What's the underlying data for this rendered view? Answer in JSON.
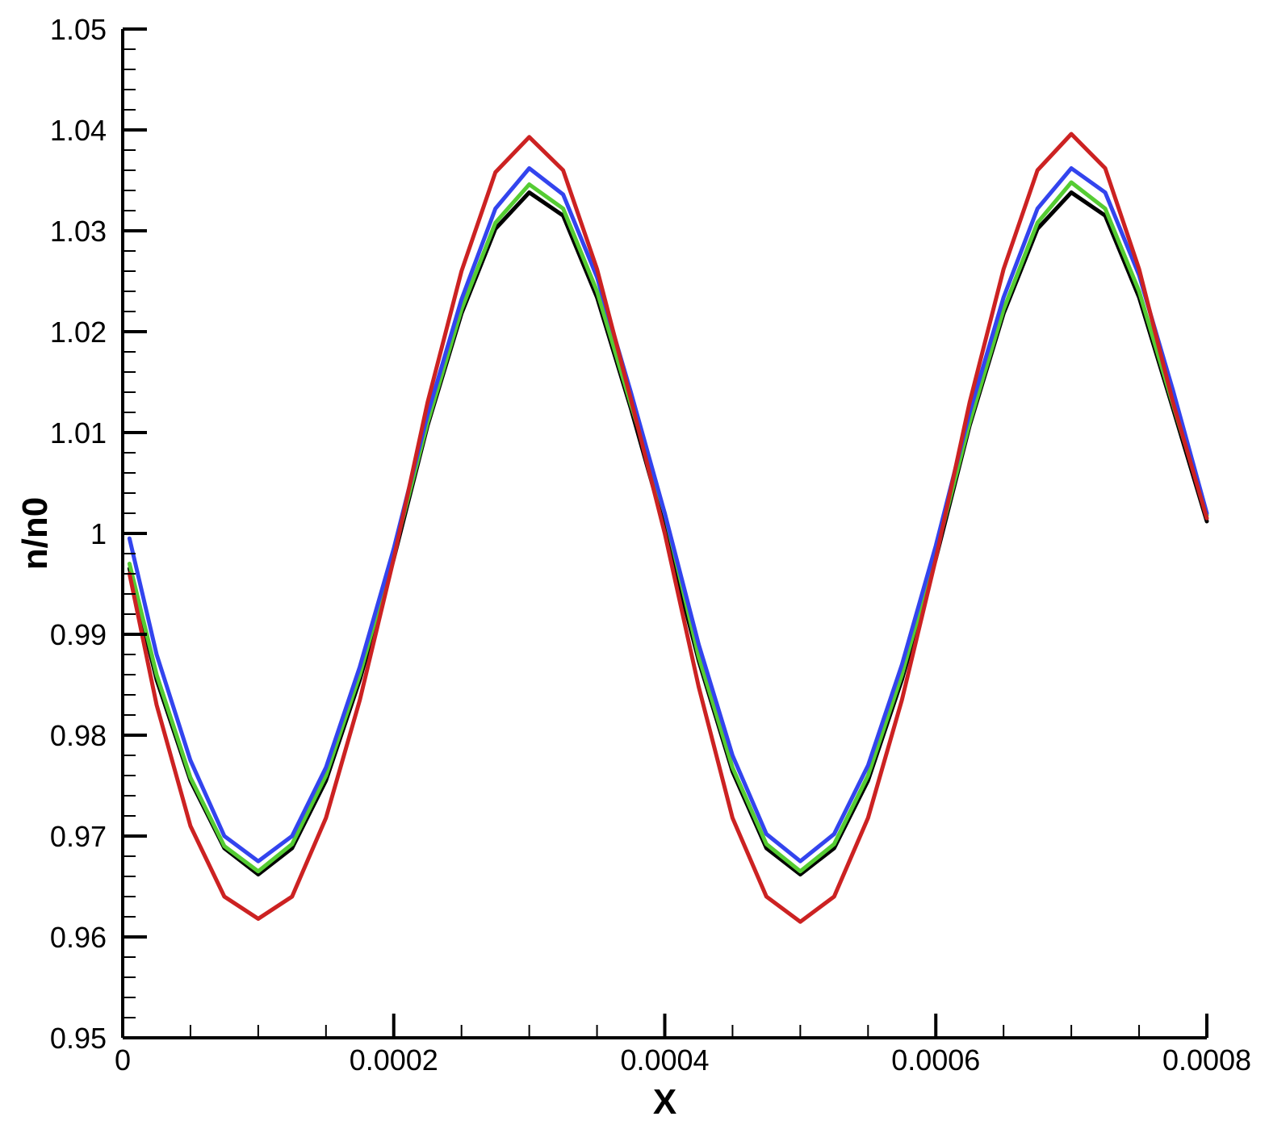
{
  "chart_data": {
    "type": "line",
    "title": "",
    "xlabel": "X",
    "ylabel": "n/n0",
    "xlim": [
      0,
      0.0008
    ],
    "ylim": [
      0.95,
      1.05
    ],
    "x_ticks": [
      0,
      0.0002,
      0.0004,
      0.0006,
      0.0008
    ],
    "x_tick_labels": [
      "0",
      "0.0002",
      "0.0004",
      "0.0006",
      "0.0008"
    ],
    "y_ticks": [
      0.95,
      0.96,
      0.97,
      0.98,
      0.99,
      1.0,
      1.01,
      1.02,
      1.03,
      1.04,
      1.05
    ],
    "y_tick_labels": [
      "0.95",
      "0.96",
      "0.97",
      "0.98",
      "0.99",
      "1",
      "1.01",
      "1.02",
      "1.03",
      "1.04",
      "1.05"
    ],
    "grid": false,
    "legend": "none",
    "series": [
      {
        "color": "#000000",
        "x": [
          5e-06,
          2.5e-05,
          5e-05,
          7.5e-05,
          0.0001,
          0.000125,
          0.00015,
          0.000175,
          0.0002,
          0.000225,
          0.00025,
          0.000275,
          0.0003,
          0.000325,
          0.00035,
          0.000375,
          0.0004,
          0.000425,
          0.00045,
          0.000475,
          0.0005,
          0.000525,
          0.00055,
          0.000575,
          0.0006,
          0.000625,
          0.00065,
          0.000675,
          0.0007,
          0.000725,
          0.00075,
          0.000775,
          0.0008
        ],
        "y": [
          0.9965,
          0.9855,
          0.9755,
          0.9688,
          0.9662,
          0.9688,
          0.9755,
          0.9855,
          0.9975,
          1.0107,
          1.0218,
          1.0302,
          1.0338,
          1.0315,
          1.0234,
          1.0124,
          1.0005,
          0.9874,
          0.9764,
          0.9688,
          0.9662,
          0.9688,
          0.9755,
          0.9855,
          0.9975,
          1.0107,
          1.0218,
          1.0302,
          1.0338,
          1.0315,
          1.0234,
          1.0124,
          1.0012
        ]
      },
      {
        "color": "#55cc33",
        "x": [
          5e-06,
          2.5e-05,
          5e-05,
          7.5e-05,
          0.0001,
          0.000125,
          0.00015,
          0.000175,
          0.0002,
          0.000225,
          0.00025,
          0.000275,
          0.0003,
          0.000325,
          0.00035,
          0.000375,
          0.0004,
          0.000425,
          0.00045,
          0.000475,
          0.0005,
          0.000525,
          0.00055,
          0.000575,
          0.0006,
          0.000625,
          0.00065,
          0.000675,
          0.0007,
          0.000725,
          0.00075,
          0.000775,
          0.0008
        ],
        "y": [
          0.997,
          0.986,
          0.9758,
          0.969,
          0.9665,
          0.9692,
          0.976,
          0.986,
          0.998,
          1.011,
          1.0222,
          1.0308,
          1.0346,
          1.0322,
          1.024,
          1.0128,
          1.002,
          0.9878,
          0.9768,
          0.9692,
          0.9665,
          0.9692,
          0.976,
          0.986,
          0.998,
          1.011,
          1.0222,
          1.0308,
          1.0348,
          1.0322,
          1.024,
          1.0128,
          1.0018
        ]
      },
      {
        "color": "#3344ee",
        "x": [
          5e-06,
          2.5e-05,
          5e-05,
          7.5e-05,
          0.0001,
          0.000125,
          0.00015,
          0.000175,
          0.0002,
          0.000225,
          0.00025,
          0.000275,
          0.0003,
          0.000325,
          0.00035,
          0.000375,
          0.0004,
          0.000425,
          0.00045,
          0.000475,
          0.0005,
          0.000525,
          0.00055,
          0.000575,
          0.0006,
          0.000625,
          0.00065,
          0.000675,
          0.0007,
          0.000725,
          0.00075,
          0.000775,
          0.0008
        ],
        "y": [
          0.9995,
          0.988,
          0.9775,
          0.97,
          0.9675,
          0.97,
          0.9768,
          0.9868,
          0.9985,
          1.0118,
          1.0232,
          1.0322,
          1.0362,
          1.0336,
          1.0254,
          1.014,
          1.002,
          0.989,
          0.978,
          0.9702,
          0.9675,
          0.9702,
          0.977,
          0.987,
          0.9988,
          1.012,
          1.0234,
          1.0322,
          1.0362,
          1.0338,
          1.0256,
          1.0142,
          1.002
        ]
      },
      {
        "color": "#cc2222",
        "x": [
          5e-06,
          2.5e-05,
          5e-05,
          7.5e-05,
          0.0001,
          0.000125,
          0.00015,
          0.000175,
          0.0002,
          0.000225,
          0.00025,
          0.000275,
          0.0003,
          0.000325,
          0.00035,
          0.000375,
          0.0004,
          0.000425,
          0.00045,
          0.000475,
          0.0005,
          0.000525,
          0.00055,
          0.000575,
          0.0006,
          0.000625,
          0.00065,
          0.000675,
          0.0007,
          0.000725,
          0.00075,
          0.000775,
          0.0008
        ],
        "y": [
          0.996,
          0.983,
          0.971,
          0.964,
          0.9618,
          0.964,
          0.9718,
          0.9835,
          0.9975,
          1.013,
          1.026,
          1.0358,
          1.0393,
          1.036,
          1.0262,
          1.0133,
          1.0,
          0.9848,
          0.9718,
          0.964,
          0.9615,
          0.964,
          0.9718,
          0.9835,
          0.9975,
          1.013,
          1.0262,
          1.036,
          1.0396,
          1.0362,
          1.0262,
          1.013,
          1.0015
        ]
      }
    ]
  }
}
